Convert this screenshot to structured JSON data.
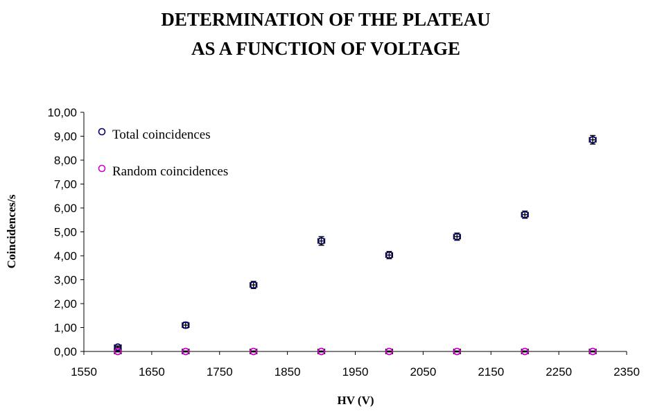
{
  "chart_data": {
    "type": "scatter",
    "title": [
      "DETERMINATION OF THE PLATEAU",
      "AS A FUNCTION OF VOLTAGE"
    ],
    "xlabel": "HV (V)",
    "ylabel": "Coincidences/s",
    "xlim": [
      1550,
      2350
    ],
    "ylim": [
      0,
      10
    ],
    "x_ticks": [
      "1550",
      "1650",
      "1750",
      "1850",
      "1950",
      "2050",
      "2150",
      "2250",
      "2350"
    ],
    "y_ticks": [
      "0,00",
      "1,00",
      "2,00",
      "3,00",
      "4,00",
      "5,00",
      "6,00",
      "7,00",
      "8,00",
      "9,00",
      "10,00"
    ],
    "grid": false,
    "legend_position": "top-left",
    "series": [
      {
        "name": "Total coincidences",
        "color": "#000066",
        "marker": "circle-open",
        "x": [
          1600,
          1700,
          1800,
          1900,
          2000,
          2100,
          2200,
          2300
        ],
        "y": [
          0.18,
          1.1,
          2.78,
          4.62,
          4.03,
          4.8,
          5.72,
          8.85
        ],
        "x_err": [
          5,
          5,
          5,
          5,
          5,
          5,
          5,
          5
        ],
        "y_err": [
          0.05,
          0.12,
          0.15,
          0.18,
          0.15,
          0.15,
          0.15,
          0.18
        ]
      },
      {
        "name": "Random coincidences",
        "color": "#cc00cc",
        "marker": "circle-open",
        "x": [
          1600,
          1700,
          1800,
          1900,
          2000,
          2100,
          2200,
          2300
        ],
        "y": [
          0,
          0,
          0,
          0,
          0,
          0,
          0,
          0
        ],
        "x_err": [
          5,
          5,
          5,
          5,
          5,
          5,
          5,
          5
        ],
        "y_err": [
          0.02,
          0.02,
          0.02,
          0.02,
          0.02,
          0.02,
          0.02,
          0.02
        ]
      }
    ]
  }
}
